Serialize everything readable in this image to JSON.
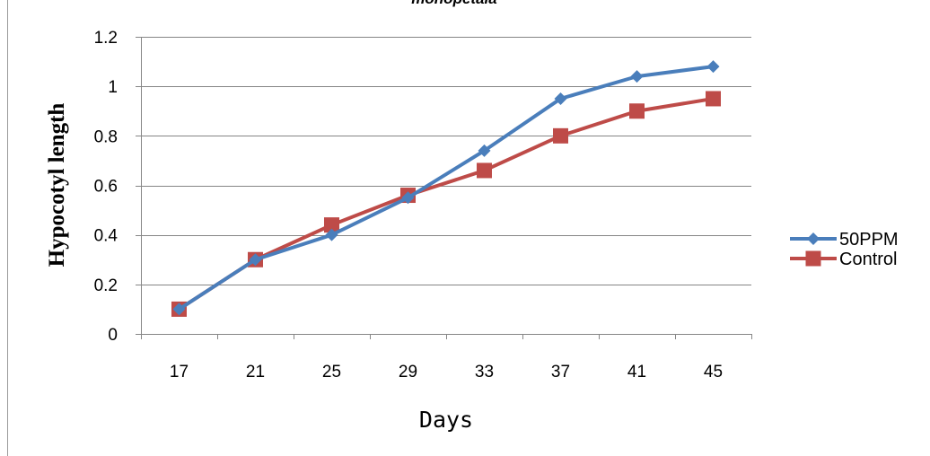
{
  "chart_data": {
    "type": "line",
    "title": "monopetala",
    "xlabel": "Days",
    "ylabel": "Hypocotyl length",
    "categories": [
      "17",
      "21",
      "25",
      "29",
      "33",
      "37",
      "41",
      "45"
    ],
    "yticks": [
      "0",
      "0.2",
      "0.4",
      "0.6",
      "0.8",
      "1",
      "1.2"
    ],
    "ylim": [
      0,
      1.2
    ],
    "grid": true,
    "legend_position": "right",
    "series": [
      {
        "name": "50PPM",
        "color": "#4A7EBB",
        "marker": "diamond",
        "values": [
          0.1,
          0.3,
          0.4,
          0.55,
          0.74,
          0.95,
          1.04,
          1.08
        ]
      },
      {
        "name": "Control",
        "color": "#BE4B48",
        "marker": "square",
        "values": [
          0.1,
          0.3,
          0.44,
          0.56,
          0.66,
          0.8,
          0.9,
          0.95
        ]
      }
    ]
  }
}
